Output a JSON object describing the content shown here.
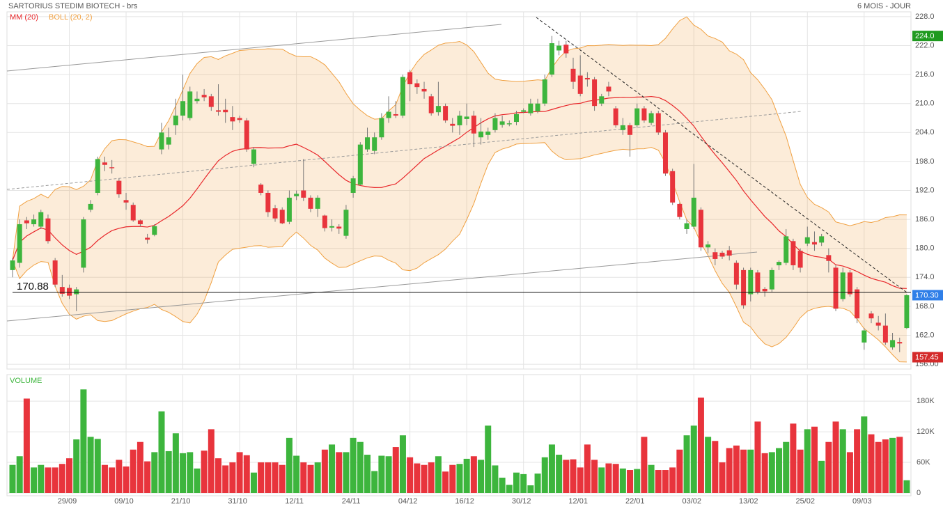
{
  "chart_data": {
    "type": "candlestick",
    "title": "SARTORIUS STEDIM BIOTECH - brs",
    "period": "6 MOIS - JOUR",
    "ma_label": "MM (20)",
    "ma_color": "#e8262a",
    "boll_label": "BOLL (20, 2)",
    "boll_color": "#f0a040",
    "up_color": "#3db53d",
    "down_color": "#e8343c",
    "grid": true,
    "categories": [
      null,
      null,
      null,
      null,
      null,
      null,
      null,
      null,
      "29/09",
      null,
      null,
      null,
      null,
      null,
      null,
      null,
      "09/10",
      null,
      null,
      null,
      null,
      null,
      null,
      null,
      "21/10",
      null,
      null,
      null,
      null,
      null,
      null,
      null,
      "31/10",
      null,
      null,
      null,
      null,
      null,
      null,
      null,
      "12/11",
      null,
      null,
      null,
      null,
      null,
      null,
      null,
      "24/11",
      null,
      null,
      null,
      null,
      null,
      null,
      null,
      "04/12",
      null,
      null,
      null,
      null,
      null,
      null,
      null,
      "16/12",
      null,
      null,
      null,
      null,
      null,
      null,
      null,
      "30/12",
      null,
      null,
      null,
      null,
      null,
      null,
      null,
      "12/01",
      null,
      null,
      null,
      null,
      null,
      null,
      null,
      "22/01",
      null,
      null,
      null,
      null,
      null,
      null,
      null,
      "03/02",
      null,
      null,
      null,
      null,
      null,
      null,
      null,
      "13/02",
      null,
      null,
      null,
      null,
      null,
      null,
      null,
      "25/02",
      null,
      null,
      null,
      null,
      null,
      null,
      null,
      "09/03",
      null,
      null,
      null,
      null,
      null,
      null
    ],
    "open": [
      175.5,
      177,
      185.8,
      185,
      184.5,
      186.2,
      177.5,
      172,
      171.8,
      170.5,
      176,
      188,
      191.5,
      197.8,
      196.8,
      194,
      190,
      189,
      185.8,
      182.2,
      182.8,
      200.5,
      201.5,
      205.5,
      207.5,
      207,
      210.5,
      211.8,
      211.5,
      208.6,
      208.7,
      207.2,
      207,
      206.5,
      197.5,
      193.2,
      191.5,
      188.3,
      188,
      185.5,
      190.8,
      192,
      190.5,
      188.2,
      186.8,
      184.3,
      184.5,
      182.6,
      191.5,
      193.2,
      200.5,
      200.2,
      203,
      207,
      207.8,
      207.5,
      216.5,
      214.2,
      213,
      211.5,
      208.2,
      209.5,
      205.8,
      205.5,
      206.8,
      207.5,
      203,
      203.5,
      204.5,
      205.6,
      205.7,
      206.2,
      208.3,
      208,
      208.4,
      210,
      216,
      221,
      222.2,
      217.2,
      215.8,
      215.3,
      215,
      210,
      213.5,
      209,
      204.5,
      205.5,
      205.5,
      209,
      206,
      208,
      204,
      196,
      189.2,
      184,
      184.5,
      188,
      180.2,
      179.2,
      179.1,
      179.6,
      177,
      175.5,
      170.5,
      175,
      171.6,
      171.5,
      176.5,
      177,
      181.5,
      179.5,
      181,
      181.3,
      181.2,
      178.6,
      176,
      169.5,
      175,
      171.5,
      160.5,
      166.5,
      164.6,
      164,
      159.5,
      160.6,
      163.5
    ],
    "high": [
      178,
      186,
      186.5,
      187,
      188,
      187,
      178,
      174.5,
      172.5,
      172,
      186.5,
      190,
      199,
      199,
      198.3,
      194.5,
      191.5,
      189.5,
      186,
      183,
      185,
      206,
      205,
      211,
      216,
      213.5,
      212.5,
      213,
      212,
      214,
      211,
      209.5,
      207.5,
      207,
      201,
      193.5,
      192,
      189,
      188.5,
      192,
      192,
      198.5,
      191,
      191,
      187,
      186,
      185,
      189,
      195,
      202,
      205,
      204,
      208,
      211.5,
      210.5,
      216,
      217,
      215,
      214.5,
      212,
      214.5,
      210,
      207,
      208.5,
      210,
      208.5,
      207,
      205,
      208,
      207.5,
      206.5,
      208.5,
      209,
      211,
      211,
      216,
      224,
      223,
      223,
      219.5,
      220,
      216.5,
      215.5,
      212,
      214.5,
      209.5,
      207,
      206,
      210,
      209.5,
      208.5,
      208.5,
      204.5,
      196.5,
      189.5,
      186,
      197.5,
      188.5,
      181.5,
      180,
      179.5,
      180.5,
      177.5,
      176,
      176,
      175.5,
      172,
      176,
      177.5,
      184,
      182,
      180,
      184.5,
      183.5,
      183,
      180,
      176.5,
      176,
      175.5,
      172,
      163.5,
      167,
      166,
      166.5,
      162.5,
      161.5,
      170.5
    ],
    "low": [
      174,
      176,
      184,
      184.5,
      184,
      181,
      172,
      170,
      169.5,
      167,
      175,
      187.5,
      191,
      196,
      195.5,
      190.5,
      188,
      185.5,
      184.5,
      181,
      182.5,
      199.5,
      200.5,
      203.5,
      206.5,
      206.5,
      210,
      210.5,
      208.5,
      207.5,
      206,
      204.5,
      206,
      200,
      196.8,
      191,
      186.5,
      185.5,
      185,
      185,
      190,
      189.8,
      187.5,
      186.5,
      183.5,
      183.5,
      183,
      182,
      190.5,
      193,
      200,
      199.5,
      202.5,
      206,
      207,
      207,
      210.5,
      212,
      211,
      207.5,
      207.5,
      206,
      204,
      203.5,
      205.5,
      201,
      201.5,
      202.5,
      204,
      205,
      205.3,
      205.5,
      208,
      207.5,
      208,
      209.5,
      215.5,
      220,
      219.5,
      213,
      211.5,
      213.5,
      208.5,
      209.5,
      211.5,
      205,
      203.5,
      199,
      205,
      206,
      205.5,
      203.5,
      195,
      189,
      186,
      183,
      184,
      179.5,
      179,
      176.5,
      177.8,
      177.5,
      171.5,
      167.5,
      169,
      170.5,
      170,
      171,
      175.5,
      176.5,
      175.5,
      175,
      180.5,
      179.5,
      180.5,
      175,
      167,
      169,
      170,
      164.5,
      159,
      164.5,
      163,
      160,
      159,
      158.5,
      163.3
    ],
    "close": [
      177.5,
      185,
      185.2,
      186,
      187.5,
      181.5,
      172.5,
      170.6,
      170.2,
      171.5,
      186,
      189.2,
      198.5,
      197.3,
      196.6,
      191.2,
      189.5,
      185.8,
      185,
      181.8,
      184.6,
      204,
      203,
      207.5,
      210.5,
      212.5,
      211,
      211.3,
      209.3,
      208.3,
      208.2,
      206.3,
      206.6,
      200.5,
      200.5,
      191.5,
      187.5,
      186.2,
      185.2,
      190.5,
      191.3,
      190.5,
      188.2,
      190.5,
      184.2,
      184.6,
      184.1,
      188,
      194.5,
      201.5,
      203,
      203,
      207,
      208.3,
      207.5,
      215.5,
      214,
      213.4,
      212.5,
      208,
      209.5,
      206.5,
      205.4,
      207.5,
      207.3,
      203.8,
      204.2,
      204.2,
      207,
      206.3,
      205.9,
      207.8,
      208.6,
      210,
      210,
      215,
      222.5,
      222,
      220.4,
      214.5,
      212,
      215,
      209.5,
      211.5,
      212.5,
      205.5,
      205.5,
      203.5,
      209,
      206.5,
      208,
      204,
      195.5,
      189.5,
      186.5,
      185.2,
      190.5,
      180.2,
      180.8,
      177.8,
      178.3,
      178.5,
      172.5,
      168.2,
      175.5,
      171,
      171.1,
      175.5,
      177.2,
      182.5,
      176.5,
      176,
      182.3,
      180.8,
      182.5,
      177.4,
      167.5,
      175,
      170.5,
      165.5,
      163,
      165.5,
      164,
      160.5,
      161,
      160.3,
      170.3
    ],
    "ylim": [
      155,
      229
    ],
    "yticks": [
      {
        "value": 228,
        "label": "228.0"
      },
      {
        "value": 222,
        "label": "222.0"
      },
      {
        "value": 216,
        "label": "216.0"
      },
      {
        "value": 210,
        "label": "210.0"
      },
      {
        "value": 204,
        "label": "204.0"
      },
      {
        "value": 198,
        "label": "198.0"
      },
      {
        "value": 192,
        "label": "192.0"
      },
      {
        "value": 186,
        "label": "186.0"
      },
      {
        "value": 180,
        "label": "180.0"
      },
      {
        "value": 174,
        "label": "174.0"
      },
      {
        "value": 168,
        "label": "168.0"
      },
      {
        "value": 162,
        "label": "162.0"
      },
      {
        "value": 156,
        "label": "156.00"
      }
    ],
    "reference_line": 170.88,
    "price_tags": [
      {
        "value": 224,
        "label": "224.0",
        "color": "#1f9a1f"
      },
      {
        "value": 170.3,
        "label": "170.30",
        "color": "#2f7fe8"
      },
      {
        "value": 157.45,
        "label": "157.45",
        "color": "#d42a2a"
      }
    ],
    "volume": {
      "title": "VOLUME",
      "title_color": "#3db53d",
      "values": [
        55000,
        72000,
        185000,
        50000,
        55000,
        50000,
        50000,
        57000,
        68000,
        105000,
        203000,
        110000,
        106000,
        55000,
        50000,
        65000,
        52000,
        85000,
        100000,
        62000,
        80000,
        160000,
        82000,
        117000,
        78000,
        80000,
        48000,
        83000,
        125000,
        68000,
        54000,
        60000,
        80000,
        74000,
        40000,
        60000,
        60000,
        60000,
        55000,
        108000,
        73000,
        60000,
        55000,
        60000,
        85000,
        95000,
        80000,
        80000,
        108000,
        100000,
        75000,
        43000,
        73000,
        72000,
        90000,
        113000,
        70000,
        58000,
        55000,
        60000,
        72000,
        42000,
        55000,
        57000,
        67000,
        72000,
        65000,
        132000,
        54000,
        30000,
        16000,
        40000,
        37000,
        15000,
        38000,
        70000,
        95000,
        75000,
        65000,
        66000,
        50000,
        95000,
        65000,
        50000,
        58000,
        57000,
        48000,
        45000,
        47000,
        110000,
        55000,
        45000,
        45000,
        50000,
        85000,
        113000,
        132000,
        187000,
        110000,
        102000,
        60000,
        88000,
        93000,
        85000,
        85000,
        140000,
        78000,
        80000,
        88000,
        100000,
        136000,
        85000,
        125000,
        130000,
        63000,
        100000,
        140000,
        125000,
        80000,
        125000,
        150000,
        115000,
        100000,
        105000,
        108000,
        110000,
        25000
      ],
      "ylim": [
        0,
        232000
      ],
      "yticks": [
        0,
        {
          "value": 60000,
          "label": "60K"
        },
        {
          "value": 120000,
          "label": "120K"
        },
        {
          "value": 180000,
          "label": "180K"
        }
      ]
    }
  }
}
